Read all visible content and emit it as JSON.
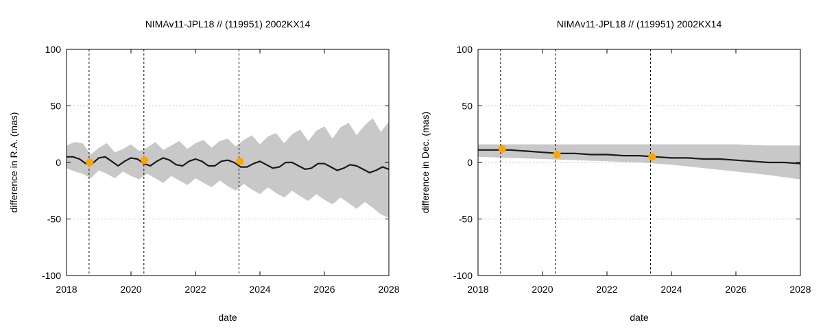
{
  "figure": {
    "background": "#ffffff"
  },
  "colors": {
    "band": "#c8c8c8",
    "line": "#1a1a1a",
    "marker": "#ffa500",
    "grid": "#c0c0c0",
    "vline": "#000000"
  },
  "chart_data": [
    {
      "type": "line",
      "title": "NIMAv11-JPL18 // (119951) 2002KX14",
      "xlabel": "date",
      "ylabel": "difference in R.A. (mas)",
      "xlim": [
        2018,
        2028
      ],
      "ylim": [
        -100,
        100
      ],
      "xticks": [
        2018,
        2020,
        2022,
        2024,
        2026,
        2028
      ],
      "xtick_labels": [
        "2018",
        "2020",
        "2022",
        "2024",
        "2026",
        "2028"
      ],
      "yticks": [
        -100,
        -50,
        0,
        50,
        100
      ],
      "ytick_labels": [
        "-100",
        "-50",
        "0",
        "50",
        "100"
      ],
      "grid": "dotted, y only",
      "vertical_lines_x": [
        2018.7,
        2020.4,
        2023.35
      ],
      "series": [
        {
          "kind": "band",
          "x": [
            2018.0,
            2018.25,
            2018.5,
            2018.75,
            2019.0,
            2019.25,
            2019.5,
            2019.75,
            2020.0,
            2020.25,
            2020.5,
            2020.75,
            2021.0,
            2021.25,
            2021.5,
            2021.75,
            2022.0,
            2022.25,
            2022.5,
            2022.75,
            2023.0,
            2023.25,
            2023.5,
            2023.75,
            2024.0,
            2024.25,
            2024.5,
            2024.75,
            2025.0,
            2025.25,
            2025.5,
            2025.75,
            2026.0,
            2026.25,
            2026.5,
            2026.75,
            2027.0,
            2027.25,
            2027.5,
            2027.75,
            2028.0
          ],
          "upper": [
            15,
            18,
            17,
            7,
            13,
            17,
            9,
            12,
            16,
            10,
            13,
            18,
            11,
            15,
            19,
            12,
            17,
            20,
            13,
            19,
            21,
            14,
            20,
            24,
            16,
            23,
            26,
            17,
            25,
            29,
            19,
            28,
            32,
            21,
            31,
            35,
            24,
            33,
            39,
            27,
            36
          ],
          "lower": [
            -5,
            -8,
            -10,
            -14,
            -7,
            -10,
            -14,
            -8,
            -12,
            -15,
            -10,
            -14,
            -18,
            -12,
            -16,
            -20,
            -14,
            -18,
            -22,
            -16,
            -21,
            -25,
            -19,
            -24,
            -28,
            -22,
            -27,
            -31,
            -25,
            -30,
            -34,
            -28,
            -33,
            -37,
            -31,
            -36,
            -41,
            -35,
            -40,
            -46,
            -49
          ]
        },
        {
          "kind": "line",
          "x": [
            2018.0,
            2018.2,
            2018.4,
            2018.6,
            2018.8,
            2019.0,
            2019.2,
            2019.4,
            2019.6,
            2019.8,
            2020.0,
            2020.2,
            2020.4,
            2020.6,
            2020.8,
            2021.0,
            2021.2,
            2021.4,
            2021.6,
            2021.8,
            2022.0,
            2022.2,
            2022.4,
            2022.6,
            2022.8,
            2023.0,
            2023.2,
            2023.4,
            2023.6,
            2023.8,
            2024.0,
            2024.2,
            2024.4,
            2024.6,
            2024.8,
            2025.0,
            2025.2,
            2025.4,
            2025.6,
            2025.8,
            2026.0,
            2026.2,
            2026.4,
            2026.6,
            2026.8,
            2027.0,
            2027.2,
            2027.4,
            2027.6,
            2027.8,
            2028.0
          ],
          "y": [
            5,
            5,
            3,
            -1,
            -1,
            4,
            5,
            1,
            -3,
            1,
            4,
            3,
            -1,
            -3,
            1,
            4,
            2,
            -2,
            -3,
            1,
            3,
            1,
            -3,
            -3,
            1,
            2,
            0,
            -4,
            -4,
            -1,
            1,
            -2,
            -5,
            -4,
            0,
            0,
            -3,
            -6,
            -5,
            -1,
            -1,
            -4,
            -7,
            -5,
            -2,
            -3,
            -6,
            -9,
            -7,
            -4,
            -6
          ]
        },
        {
          "kind": "markers",
          "x": [
            2018.72,
            2020.42,
            2023.38
          ],
          "y": [
            0,
            2,
            1
          ]
        }
      ]
    },
    {
      "type": "line",
      "title": "NIMAv11-JPL18 // (119951) 2002KX14",
      "xlabel": "date",
      "ylabel": "difference in Dec. (mas)",
      "xlim": [
        2018,
        2028
      ],
      "ylim": [
        -100,
        100
      ],
      "xticks": [
        2018,
        2020,
        2022,
        2024,
        2026,
        2028
      ],
      "xtick_labels": [
        "2018",
        "2020",
        "2022",
        "2024",
        "2026",
        "2028"
      ],
      "yticks": [
        -100,
        -50,
        0,
        50,
        100
      ],
      "ytick_labels": [
        "-100",
        "-50",
        "0",
        "50",
        "100"
      ],
      "grid": "dotted, y only",
      "vertical_lines_x": [
        2018.7,
        2020.4,
        2023.35
      ],
      "series": [
        {
          "kind": "band",
          "x": [
            2018.0,
            2019.0,
            2020.0,
            2021.0,
            2022.0,
            2023.0,
            2024.0,
            2025.0,
            2026.0,
            2027.0,
            2028.0
          ],
          "upper": [
            16,
            16,
            16,
            16,
            16,
            16,
            16,
            16,
            16,
            15,
            15
          ],
          "lower": [
            5,
            4,
            3,
            2,
            1,
            0,
            -2,
            -5,
            -8,
            -11,
            -15
          ]
        },
        {
          "kind": "line",
          "x": [
            2018.0,
            2018.5,
            2019.0,
            2019.5,
            2020.0,
            2020.5,
            2021.0,
            2021.5,
            2022.0,
            2022.5,
            2023.0,
            2023.5,
            2024.0,
            2024.5,
            2025.0,
            2025.5,
            2026.0,
            2026.5,
            2027.0,
            2027.5,
            2028.0
          ],
          "y": [
            11,
            11,
            11,
            10,
            9,
            8,
            8,
            7,
            7,
            6,
            6,
            5,
            4,
            4,
            3,
            3,
            2,
            1,
            0,
            0,
            -1
          ]
        },
        {
          "kind": "markers",
          "x": [
            2018.75,
            2020.45,
            2023.4
          ],
          "y": [
            12,
            7,
            5
          ]
        }
      ]
    }
  ]
}
